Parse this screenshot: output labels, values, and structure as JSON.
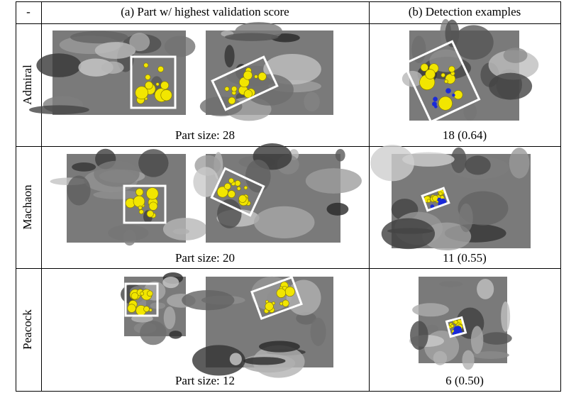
{
  "header": [
    "-",
    "(a) Part w/ highest validation score",
    "(b) Detection examples"
  ],
  "rows": [
    {
      "label": "Admiral",
      "part_size": "Part size: 28",
      "detection": "18 (0.64)"
    },
    {
      "label": "Machaon",
      "part_size": "Part size: 20",
      "detection": "11 (0.55)"
    },
    {
      "label": "Peacock",
      "part_size": "Part size: 12",
      "detection": "6 (0.50)"
    }
  ]
}
